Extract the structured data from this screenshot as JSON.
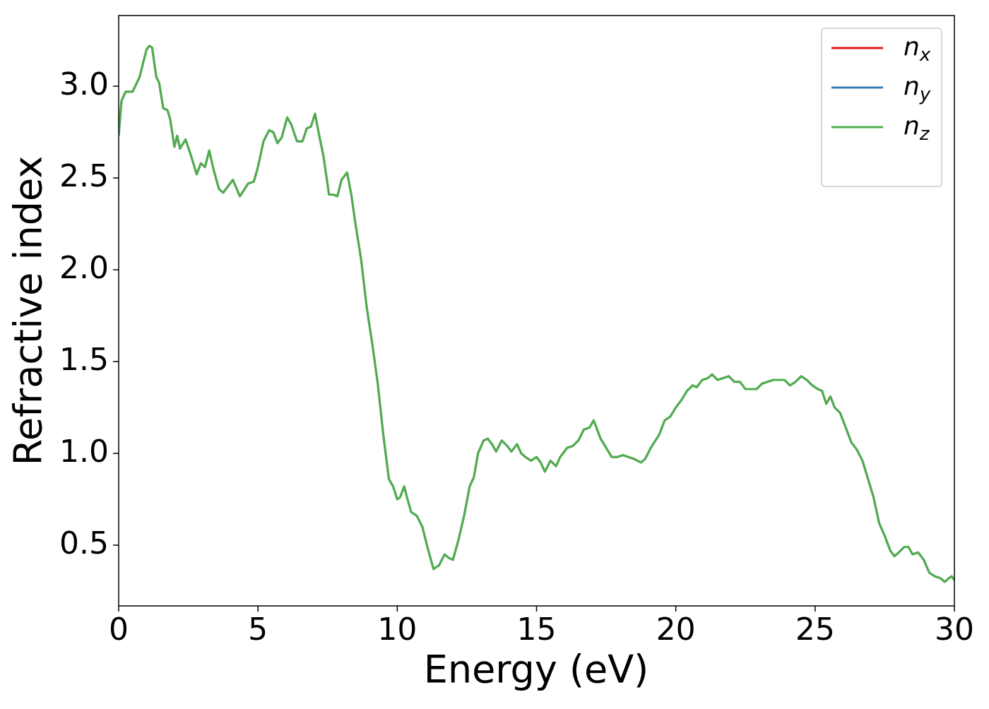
{
  "chart_data": {
    "type": "line",
    "xlabel": "Energy (eV)",
    "ylabel": "Refractive index",
    "xlim": [
      0,
      30
    ],
    "ylim": [
      0.169,
      3.385
    ],
    "xticks": [
      0,
      5,
      10,
      15,
      20,
      25,
      30
    ],
    "yticks": [
      0.5,
      {
        "value": 1,
        "label": "1.0"
      },
      1.5,
      {
        "value": 2,
        "label": "2.0"
      },
      2.5,
      {
        "value": 3,
        "label": "3.0"
      }
    ],
    "grid": false,
    "legend": "upper right",
    "x": [
      0,
      0.1,
      0.25,
      0.5,
      0.75,
      1.0,
      1.1,
      1.2,
      1.35,
      1.45,
      1.6,
      1.75,
      1.85,
      2.0,
      2.1,
      2.2,
      2.4,
      2.6,
      2.8,
      2.95,
      3.1,
      3.25,
      3.4,
      3.6,
      3.75,
      3.9,
      4.1,
      4.35,
      4.65,
      4.85,
      5.0,
      5.2,
      5.4,
      5.55,
      5.7,
      5.85,
      6.05,
      6.2,
      6.4,
      6.6,
      6.75,
      6.9,
      7.05,
      7.2,
      7.35,
      7.55,
      7.7,
      7.85,
      8.0,
      8.2,
      8.35,
      8.5,
      8.7,
      8.9,
      9.1,
      9.3,
      9.5,
      9.7,
      9.85,
      10.0,
      10.1,
      10.25,
      10.35,
      10.5,
      10.7,
      10.9,
      11.1,
      11.3,
      11.5,
      11.7,
      11.85,
      12.0,
      12.2,
      12.4,
      12.6,
      12.75,
      12.9,
      13.1,
      13.25,
      13.4,
      13.55,
      13.75,
      13.95,
      14.1,
      14.3,
      14.45,
      14.6,
      14.8,
      15.0,
      15.15,
      15.3,
      15.5,
      15.7,
      15.85,
      16.1,
      16.3,
      16.5,
      16.7,
      16.9,
      17.05,
      17.3,
      17.5,
      17.7,
      17.9,
      18.1,
      18.3,
      18.5,
      18.75,
      18.9,
      19.1,
      19.4,
      19.6,
      19.8,
      20.0,
      20.2,
      20.4,
      20.6,
      20.75,
      20.95,
      21.15,
      21.3,
      21.5,
      21.7,
      21.9,
      22.1,
      22.3,
      22.5,
      22.7,
      22.9,
      23.1,
      23.3,
      23.5,
      23.7,
      23.9,
      24.1,
      24.3,
      24.5,
      24.7,
      24.9,
      25.1,
      25.25,
      25.4,
      25.55,
      25.7,
      25.9,
      26.1,
      26.3,
      26.5,
      26.7,
      26.9,
      27.1,
      27.3,
      27.5,
      27.7,
      27.85,
      28.0,
      28.2,
      28.35,
      28.5,
      28.7,
      28.9,
      29.1,
      29.3,
      29.5,
      29.65,
      29.8,
      29.9,
      30.0
    ],
    "series": [
      {
        "name": "nx",
        "color": "#e41a1c",
        "values": [
          2.73,
          2.92,
          2.97,
          2.97,
          3.05,
          3.2,
          3.22,
          3.21,
          3.05,
          3.02,
          2.88,
          2.87,
          2.82,
          2.67,
          2.73,
          2.66,
          2.71,
          2.62,
          2.52,
          2.58,
          2.56,
          2.65,
          2.55,
          2.44,
          2.42,
          2.45,
          2.49,
          2.4,
          2.47,
          2.48,
          2.56,
          2.7,
          2.76,
          2.75,
          2.69,
          2.72,
          2.83,
          2.79,
          2.7,
          2.7,
          2.77,
          2.78,
          2.85,
          2.73,
          2.62,
          2.41,
          2.41,
          2.4,
          2.49,
          2.53,
          2.41,
          2.25,
          2.06,
          1.8,
          1.6,
          1.38,
          1.1,
          0.86,
          0.82,
          0.75,
          0.76,
          0.82,
          0.76,
          0.68,
          0.66,
          0.6,
          0.48,
          0.37,
          0.39,
          0.45,
          0.43,
          0.42,
          0.53,
          0.66,
          0.82,
          0.87,
          1.0,
          1.07,
          1.08,
          1.05,
          1.01,
          1.07,
          1.04,
          1.01,
          1.05,
          1.0,
          0.98,
          0.96,
          0.98,
          0.95,
          0.9,
          0.96,
          0.93,
          0.98,
          1.03,
          1.04,
          1.07,
          1.13,
          1.14,
          1.18,
          1.08,
          1.03,
          0.98,
          0.98,
          0.99,
          0.98,
          0.97,
          0.95,
          0.97,
          1.03,
          1.1,
          1.18,
          1.2,
          1.25,
          1.29,
          1.34,
          1.37,
          1.36,
          1.4,
          1.41,
          1.43,
          1.4,
          1.41,
          1.42,
          1.39,
          1.39,
          1.35,
          1.35,
          1.35,
          1.38,
          1.39,
          1.4,
          1.4,
          1.4,
          1.37,
          1.39,
          1.42,
          1.4,
          1.37,
          1.35,
          1.34,
          1.27,
          1.31,
          1.25,
          1.22,
          1.14,
          1.06,
          1.02,
          0.96,
          0.86,
          0.76,
          0.62,
          0.55,
          0.47,
          0.44,
          0.46,
          0.49,
          0.49,
          0.45,
          0.46,
          0.42,
          0.35,
          0.33,
          0.32,
          0.3,
          0.32,
          0.33,
          0.31
        ]
      },
      {
        "name": "ny",
        "color": "#377eb8",
        "values": [
          2.73,
          2.92,
          2.97,
          2.97,
          3.05,
          3.2,
          3.22,
          3.21,
          3.05,
          3.02,
          2.88,
          2.87,
          2.82,
          2.67,
          2.73,
          2.66,
          2.71,
          2.62,
          2.52,
          2.58,
          2.56,
          2.65,
          2.55,
          2.44,
          2.42,
          2.45,
          2.49,
          2.4,
          2.47,
          2.48,
          2.56,
          2.7,
          2.76,
          2.75,
          2.69,
          2.72,
          2.83,
          2.79,
          2.7,
          2.7,
          2.77,
          2.78,
          2.85,
          2.73,
          2.62,
          2.41,
          2.41,
          2.4,
          2.49,
          2.53,
          2.41,
          2.25,
          2.06,
          1.8,
          1.6,
          1.38,
          1.1,
          0.86,
          0.82,
          0.75,
          0.76,
          0.82,
          0.76,
          0.68,
          0.66,
          0.6,
          0.48,
          0.37,
          0.39,
          0.45,
          0.43,
          0.42,
          0.53,
          0.66,
          0.82,
          0.87,
          1.0,
          1.07,
          1.08,
          1.05,
          1.01,
          1.07,
          1.04,
          1.01,
          1.05,
          1.0,
          0.98,
          0.96,
          0.98,
          0.95,
          0.9,
          0.96,
          0.93,
          0.98,
          1.03,
          1.04,
          1.07,
          1.13,
          1.14,
          1.18,
          1.08,
          1.03,
          0.98,
          0.98,
          0.99,
          0.98,
          0.97,
          0.95,
          0.97,
          1.03,
          1.1,
          1.18,
          1.2,
          1.25,
          1.29,
          1.34,
          1.37,
          1.36,
          1.4,
          1.41,
          1.43,
          1.4,
          1.41,
          1.42,
          1.39,
          1.39,
          1.35,
          1.35,
          1.35,
          1.38,
          1.39,
          1.4,
          1.4,
          1.4,
          1.37,
          1.39,
          1.42,
          1.4,
          1.37,
          1.35,
          1.34,
          1.27,
          1.31,
          1.25,
          1.22,
          1.14,
          1.06,
          1.02,
          0.96,
          0.86,
          0.76,
          0.62,
          0.55,
          0.47,
          0.44,
          0.46,
          0.49,
          0.49,
          0.45,
          0.46,
          0.42,
          0.35,
          0.33,
          0.32,
          0.3,
          0.32,
          0.33,
          0.31
        ]
      },
      {
        "name": "nz",
        "color": "#4daf4a",
        "values": [
          2.73,
          2.92,
          2.97,
          2.97,
          3.05,
          3.2,
          3.22,
          3.21,
          3.05,
          3.02,
          2.88,
          2.87,
          2.82,
          2.67,
          2.73,
          2.66,
          2.71,
          2.62,
          2.52,
          2.58,
          2.56,
          2.65,
          2.55,
          2.44,
          2.42,
          2.45,
          2.49,
          2.4,
          2.47,
          2.48,
          2.56,
          2.7,
          2.76,
          2.75,
          2.69,
          2.72,
          2.83,
          2.79,
          2.7,
          2.7,
          2.77,
          2.78,
          2.85,
          2.73,
          2.62,
          2.41,
          2.41,
          2.4,
          2.49,
          2.53,
          2.41,
          2.25,
          2.06,
          1.8,
          1.6,
          1.38,
          1.1,
          0.86,
          0.82,
          0.75,
          0.76,
          0.82,
          0.76,
          0.68,
          0.66,
          0.6,
          0.48,
          0.37,
          0.39,
          0.45,
          0.43,
          0.42,
          0.53,
          0.66,
          0.82,
          0.87,
          1.0,
          1.07,
          1.08,
          1.05,
          1.01,
          1.07,
          1.04,
          1.01,
          1.05,
          1.0,
          0.98,
          0.96,
          0.98,
          0.95,
          0.9,
          0.96,
          0.93,
          0.98,
          1.03,
          1.04,
          1.07,
          1.13,
          1.14,
          1.18,
          1.08,
          1.03,
          0.98,
          0.98,
          0.99,
          0.98,
          0.97,
          0.95,
          0.97,
          1.03,
          1.1,
          1.18,
          1.2,
          1.25,
          1.29,
          1.34,
          1.37,
          1.36,
          1.4,
          1.41,
          1.43,
          1.4,
          1.41,
          1.42,
          1.39,
          1.39,
          1.35,
          1.35,
          1.35,
          1.38,
          1.39,
          1.4,
          1.4,
          1.4,
          1.37,
          1.39,
          1.42,
          1.4,
          1.37,
          1.35,
          1.34,
          1.27,
          1.31,
          1.25,
          1.22,
          1.14,
          1.06,
          1.02,
          0.96,
          0.86,
          0.76,
          0.62,
          0.55,
          0.47,
          0.44,
          0.46,
          0.49,
          0.49,
          0.45,
          0.46,
          0.42,
          0.35,
          0.33,
          0.32,
          0.3,
          0.32,
          0.33,
          0.31
        ]
      }
    ]
  }
}
